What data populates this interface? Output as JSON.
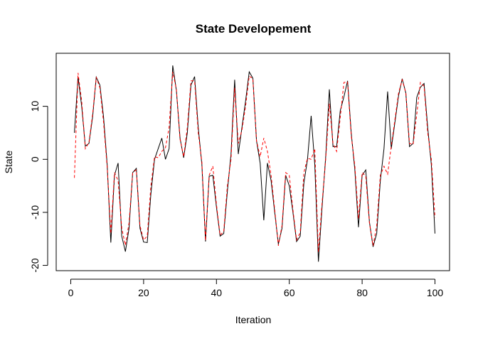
{
  "chart_data": {
    "type": "line",
    "title": "State Developement",
    "xlabel": "Iteration",
    "ylabel": "State",
    "xlim": [
      -4,
      104
    ],
    "ylim": [
      -21,
      20
    ],
    "x_ticks": [
      0,
      20,
      40,
      60,
      80,
      100
    ],
    "y_ticks": [
      -20,
      -10,
      0,
      10
    ],
    "grid": false,
    "legend": "none",
    "series": [
      {
        "color": "#000000",
        "dash": "solid",
        "x": [
          1,
          2,
          3,
          4,
          5,
          6,
          7,
          8,
          9,
          10,
          11,
          12,
          13,
          14,
          15,
          16,
          17,
          18,
          19,
          20,
          21,
          22,
          23,
          24,
          25,
          26,
          27,
          28,
          29,
          30,
          31,
          32,
          33,
          34,
          35,
          36,
          37,
          38,
          39,
          40,
          41,
          42,
          43,
          44,
          45,
          46,
          47,
          48,
          49,
          50,
          51,
          52,
          53,
          54,
          55,
          56,
          57,
          58,
          59,
          60,
          61,
          62,
          63,
          64,
          65,
          66,
          67,
          68,
          69,
          70,
          71,
          72,
          73,
          74,
          75,
          76,
          77,
          78,
          79,
          80,
          81,
          82,
          83,
          84,
          85,
          86,
          87,
          88,
          89,
          90,
          91,
          92,
          93,
          94,
          95,
          96,
          97,
          98,
          99,
          100
        ],
        "values": [
          5,
          15.5,
          10,
          2.5,
          3,
          8,
          15.5,
          14,
          8,
          -1,
          -15.7,
          -3,
          -0.7,
          -14.5,
          -17.4,
          -13,
          -2.5,
          -1.7,
          -13,
          -15.6,
          -15.7,
          -6.5,
          0,
          2,
          4,
          0,
          2,
          17.7,
          13,
          4,
          0.3,
          5,
          14,
          15.6,
          6,
          -1,
          -15.5,
          -3.2,
          -3,
          -9,
          -14.5,
          -14,
          -6,
          1,
          15,
          1,
          6,
          11,
          16.5,
          15.3,
          3.5,
          -0.7,
          -11.5,
          -0.7,
          -4,
          -10,
          -16,
          -13,
          -3,
          -5,
          -10,
          -15.5,
          -14.5,
          -4.5,
          0,
          8.2,
          -1,
          -19.3,
          -9,
          0.5,
          13.2,
          2.4,
          2.4,
          9.2,
          11.8,
          14.8,
          5,
          -2,
          -12.8,
          -3,
          -2,
          -11.8,
          -16.5,
          -14,
          -4,
          2,
          12.8,
          2,
          7,
          12,
          15.2,
          12.5,
          2.4,
          3,
          11.7,
          13.6,
          14.3,
          6,
          -1,
          -14
        ]
      },
      {
        "color": "#ff0000",
        "dash": "dashed",
        "x": [
          1,
          2,
          3,
          4,
          5,
          6,
          7,
          8,
          9,
          10,
          11,
          12,
          13,
          14,
          15,
          16,
          17,
          18,
          19,
          20,
          21,
          22,
          23,
          24,
          25,
          26,
          27,
          28,
          29,
          30,
          31,
          32,
          33,
          34,
          35,
          36,
          37,
          38,
          39,
          40,
          41,
          42,
          43,
          44,
          45,
          46,
          47,
          48,
          49,
          50,
          51,
          52,
          53,
          54,
          55,
          56,
          57,
          58,
          59,
          60,
          61,
          62,
          63,
          64,
          65,
          66,
          67,
          68,
          69,
          70,
          71,
          72,
          73,
          74,
          75,
          76,
          77,
          78,
          79,
          80,
          81,
          82,
          83,
          84,
          85,
          86,
          87,
          88,
          89,
          90,
          91,
          92,
          93,
          94,
          95,
          96,
          97,
          98,
          99,
          100
        ],
        "values": [
          -3.5,
          16.3,
          11,
          2,
          3.2,
          8.5,
          15.5,
          13.5,
          7,
          -1.5,
          -14,
          -2.5,
          -4,
          -13,
          -16.2,
          -12,
          -2.5,
          -2,
          -12.5,
          -15.2,
          -14.5,
          -5,
          0.5,
          0.3,
          1.5,
          2.2,
          6,
          16.5,
          13.2,
          3.8,
          0.5,
          6,
          14.8,
          14.8,
          5,
          -0.5,
          -15.3,
          -3,
          -1.3,
          -8.5,
          -14.3,
          -13.6,
          -5,
          0,
          13.5,
          3,
          5.5,
          10,
          15.7,
          15.2,
          3.5,
          0.5,
          4,
          1.5,
          -3,
          -9.5,
          -16.3,
          -12.5,
          -2.5,
          -3,
          -9.5,
          -15.2,
          -13.8,
          -2.5,
          0.2,
          0,
          2,
          -17.5,
          -8.2,
          0,
          10.5,
          3,
          1.5,
          8,
          14.5,
          14.6,
          4.5,
          -1.2,
          -11.2,
          -2.5,
          -3.2,
          -12,
          -16.3,
          -12.5,
          -3,
          -1.3,
          -2.8,
          2.5,
          7.5,
          12.5,
          15,
          12.5,
          3,
          2.8,
          8.5,
          14.5,
          13.8,
          5,
          0,
          -11
        ]
      }
    ]
  }
}
